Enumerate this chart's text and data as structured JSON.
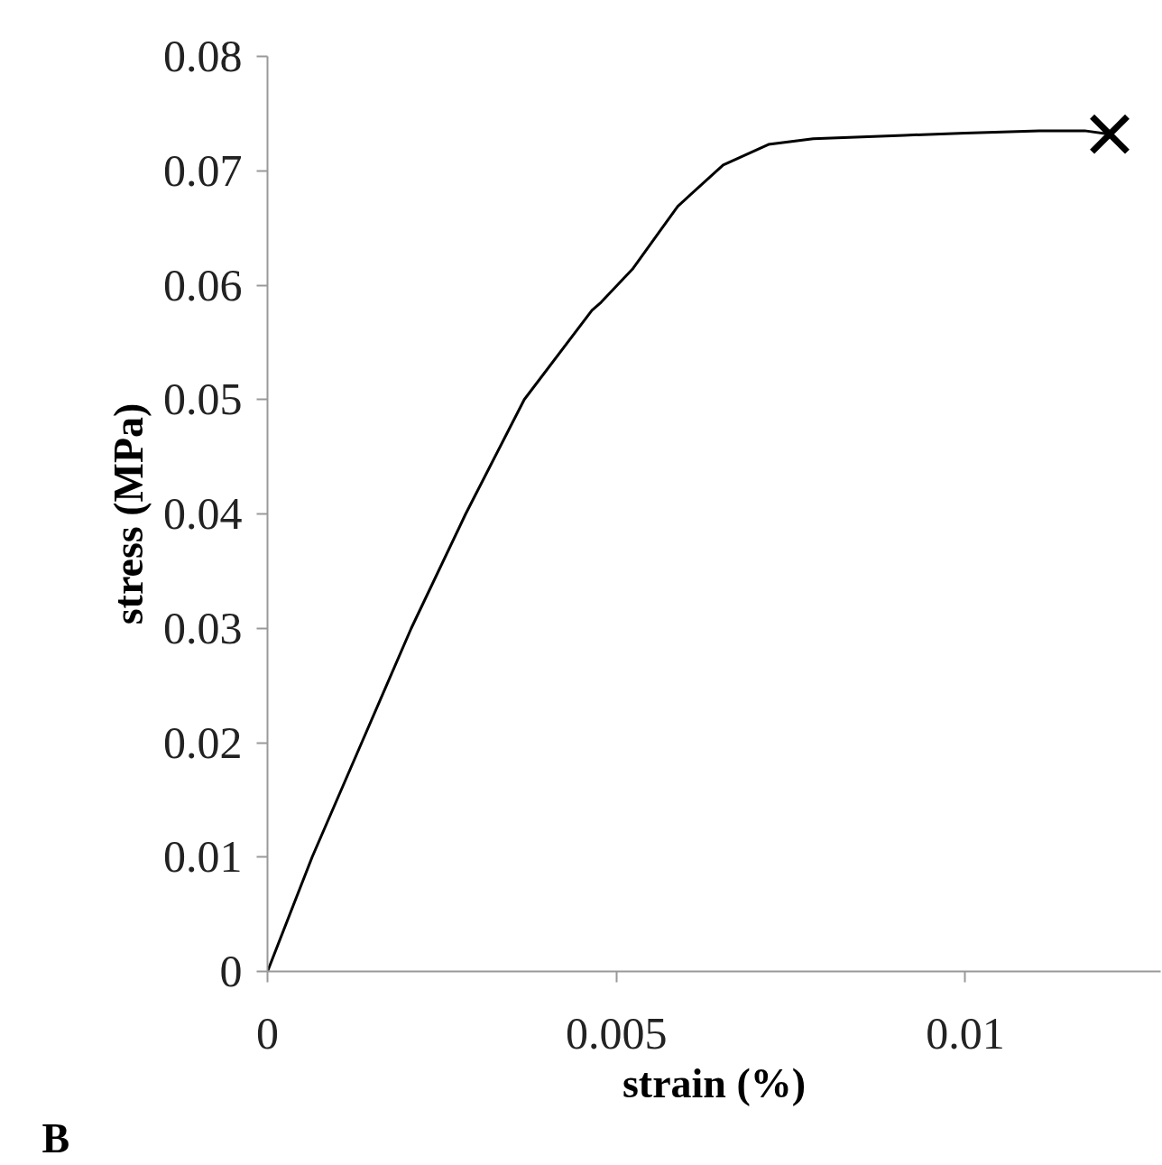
{
  "chart_data": {
    "type": "line",
    "xlabel": "strain (%)",
    "ylabel": "stress (MPa)",
    "annotations": [
      "B"
    ],
    "xlim": [
      0,
      0.0128
    ],
    "xticks": [
      0,
      0.005,
      0.01
    ],
    "ylim": [
      0,
      0.08
    ],
    "yticks": [
      0,
      0.01,
      0.02,
      0.03,
      0.04,
      0.05,
      0.06,
      0.07,
      0.08
    ],
    "grid": false,
    "series": [
      {
        "color": "#000000",
        "marker": "none",
        "line_style": "solid",
        "x": [
          0,
          0.00064,
          0.00135,
          0.00206,
          0.00284,
          0.00368,
          0.00465,
          0.00478,
          0.00523,
          0.00588,
          0.00653,
          0.00718,
          0.00782,
          0.00912,
          0.01,
          0.01106,
          0.01171,
          0.01207
        ],
        "values": [
          0,
          0.01,
          0.02,
          0.03,
          0.04,
          0.05,
          0.0578,
          0.0585,
          0.0614,
          0.0669,
          0.0705,
          0.0723,
          0.0728,
          0.0731,
          0.0733,
          0.0735,
          0.0735,
          0.0732
        ]
      },
      {
        "type": "scatter",
        "color": "#000000",
        "marker": "cross",
        "x": [
          0.01207
        ],
        "values": [
          0.0732
        ]
      }
    ]
  }
}
